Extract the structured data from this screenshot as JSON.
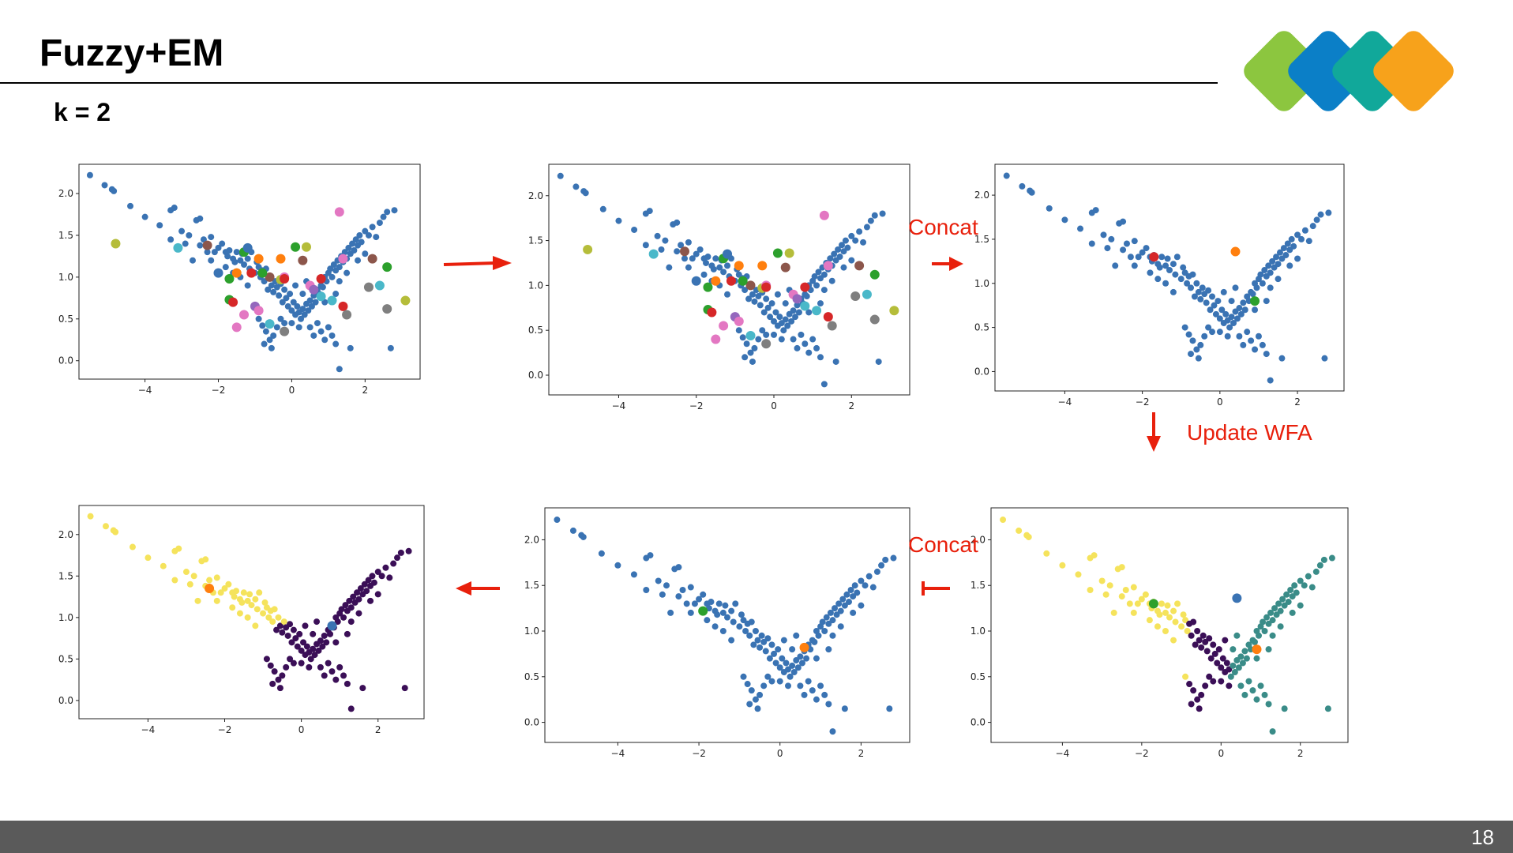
{
  "slide": {
    "title": "Fuzzy+EM",
    "subtitle": "k = 2",
    "page_number": "18",
    "logo_colors": [
      "#8cc63f",
      "#0b7fc7",
      "#11a89a",
      "#f7a21b"
    ]
  },
  "annotations": {
    "concat_top": "Concat",
    "concat_bottom": "Concat",
    "update": "Update WFA"
  },
  "colors": {
    "base_points": "#3a73b3",
    "arrow": "#e8200c",
    "cluster_dark": "#3b0f57",
    "cluster_yellow": "#f5e35c",
    "cluster_teal": "#3a8c88"
  },
  "chart_data": [
    {
      "id": "chart-1",
      "type": "scatter",
      "xlim": [
        -5.8,
        3.5
      ],
      "ylim": [
        -0.22,
        2.35
      ],
      "xticks": [
        "−4",
        "−2",
        "0",
        "2"
      ],
      "yticks": [
        "0.0",
        "0.5",
        "1.0",
        "1.5",
        "2.0"
      ],
      "series": [
        {
          "kind": "base",
          "color": "#3a73b3",
          "size": 4
        },
        {
          "kind": "markers",
          "size": 6,
          "points": [
            [
              -4.8,
              1.4,
              "#b5bd3a"
            ],
            [
              -3.1,
              1.35,
              "#4ab8c9"
            ],
            [
              -2.3,
              1.38,
              "#8c564b"
            ],
            [
              -1.3,
              1.3,
              "#2ca02c"
            ],
            [
              -0.9,
              1.22,
              "#ff7f0e"
            ],
            [
              -0.3,
              1.22,
              "#ff7f0e"
            ],
            [
              0.1,
              1.36,
              "#2ca02c"
            ],
            [
              0.4,
              1.36,
              "#b5bd3a"
            ],
            [
              0.3,
              1.2,
              "#8c564b"
            ],
            [
              -1.1,
              1.05,
              "#d62728"
            ],
            [
              -0.6,
              1.0,
              "#8c564b"
            ],
            [
              -0.3,
              0.97,
              "#b5bd3a"
            ],
            [
              -0.2,
              1.0,
              "#e377c2"
            ],
            [
              -1.7,
              0.98,
              "#2ca02c"
            ],
            [
              -0.2,
              0.98,
              "#d62728"
            ],
            [
              0.8,
              0.98,
              "#d62728"
            ],
            [
              0.5,
              0.9,
              "#e377c2"
            ],
            [
              0.6,
              0.85,
              "#9467bd"
            ],
            [
              -1.7,
              0.73,
              "#2ca02c"
            ],
            [
              -1.6,
              0.7,
              "#d62728"
            ],
            [
              -1.0,
              0.65,
              "#9467bd"
            ],
            [
              -0.9,
              0.6,
              "#e377c2"
            ],
            [
              -1.3,
              0.55,
              "#e377c2"
            ],
            [
              -1.5,
              0.4,
              "#e377c2"
            ],
            [
              -0.6,
              0.44,
              "#4ab8c9"
            ],
            [
              -0.2,
              0.35,
              "#7f7f7f"
            ],
            [
              0.8,
              0.77,
              "#4ab8c9"
            ],
            [
              1.1,
              0.72,
              "#4ab8c9"
            ],
            [
              1.4,
              0.65,
              "#d62728"
            ],
            [
              1.5,
              0.55,
              "#7f7f7f"
            ],
            [
              1.3,
              1.78,
              "#e377c2"
            ],
            [
              1.4,
              1.22,
              "#e377c2"
            ],
            [
              2.2,
              1.22,
              "#8c564b"
            ],
            [
              2.6,
              1.12,
              "#2ca02c"
            ],
            [
              2.4,
              0.9,
              "#4ab8c9"
            ],
            [
              2.1,
              0.88,
              "#7f7f7f"
            ],
            [
              2.6,
              0.62,
              "#7f7f7f"
            ],
            [
              3.1,
              0.72,
              "#b5bd3a"
            ],
            [
              -0.8,
              1.05,
              "#2ca02c"
            ],
            [
              -1.5,
              1.05,
              "#ff7f0e"
            ],
            [
              -2.0,
              1.05,
              "#3a73b3"
            ],
            [
              -1.2,
              1.35,
              "#3a73b3"
            ]
          ]
        }
      ]
    },
    {
      "id": "chart-2",
      "type": "scatter",
      "xlim": [
        -5.8,
        3.5
      ],
      "ylim": [
        -0.22,
        2.35
      ],
      "xticks": [
        "−4",
        "−2",
        "0",
        "2"
      ],
      "yticks": [
        "0.0",
        "0.5",
        "1.0",
        "1.5",
        "2.0"
      ],
      "series": [
        {
          "kind": "base",
          "color": "#3a73b3",
          "size": 4
        },
        {
          "kind": "markers",
          "size": 6,
          "points": [
            [
              -4.8,
              1.4,
              "#b5bd3a"
            ],
            [
              -3.1,
              1.35,
              "#4ab8c9"
            ],
            [
              -2.3,
              1.38,
              "#8c564b"
            ],
            [
              -1.3,
              1.3,
              "#2ca02c"
            ],
            [
              -0.9,
              1.22,
              "#ff7f0e"
            ],
            [
              -0.3,
              1.22,
              "#ff7f0e"
            ],
            [
              0.1,
              1.36,
              "#2ca02c"
            ],
            [
              0.4,
              1.36,
              "#b5bd3a"
            ],
            [
              0.3,
              1.2,
              "#8c564b"
            ],
            [
              -1.1,
              1.05,
              "#d62728"
            ],
            [
              -0.6,
              1.0,
              "#8c564b"
            ],
            [
              -0.3,
              0.97,
              "#b5bd3a"
            ],
            [
              -0.2,
              1.0,
              "#e377c2"
            ],
            [
              -1.7,
              0.98,
              "#2ca02c"
            ],
            [
              -0.2,
              0.98,
              "#d62728"
            ],
            [
              0.8,
              0.98,
              "#d62728"
            ],
            [
              0.5,
              0.9,
              "#e377c2"
            ],
            [
              0.6,
              0.85,
              "#9467bd"
            ],
            [
              -1.7,
              0.73,
              "#2ca02c"
            ],
            [
              -1.6,
              0.7,
              "#d62728"
            ],
            [
              -1.0,
              0.65,
              "#9467bd"
            ],
            [
              -0.9,
              0.6,
              "#e377c2"
            ],
            [
              -1.3,
              0.55,
              "#e377c2"
            ],
            [
              -1.5,
              0.4,
              "#e377c2"
            ],
            [
              -0.6,
              0.44,
              "#4ab8c9"
            ],
            [
              -0.2,
              0.35,
              "#7f7f7f"
            ],
            [
              0.8,
              0.77,
              "#4ab8c9"
            ],
            [
              1.1,
              0.72,
              "#4ab8c9"
            ],
            [
              1.4,
              0.65,
              "#d62728"
            ],
            [
              1.5,
              0.55,
              "#7f7f7f"
            ],
            [
              1.3,
              1.78,
              "#e377c2"
            ],
            [
              1.4,
              1.22,
              "#e377c2"
            ],
            [
              2.2,
              1.22,
              "#8c564b"
            ],
            [
              2.6,
              1.12,
              "#2ca02c"
            ],
            [
              2.4,
              0.9,
              "#4ab8c9"
            ],
            [
              2.1,
              0.88,
              "#7f7f7f"
            ],
            [
              2.6,
              0.62,
              "#7f7f7f"
            ],
            [
              3.1,
              0.72,
              "#b5bd3a"
            ],
            [
              -0.8,
              1.05,
              "#2ca02c"
            ],
            [
              -1.5,
              1.05,
              "#ff7f0e"
            ],
            [
              -2.0,
              1.05,
              "#3a73b3"
            ],
            [
              -1.2,
              1.35,
              "#3a73b3"
            ]
          ]
        }
      ]
    },
    {
      "id": "chart-3",
      "type": "scatter",
      "xlim": [
        -5.8,
        3.2
      ],
      "ylim": [
        -0.22,
        2.35
      ],
      "xticks": [
        "−4",
        "−2",
        "0",
        "2"
      ],
      "yticks": [
        "0.0",
        "0.5",
        "1.0",
        "1.5",
        "2.0"
      ],
      "series": [
        {
          "kind": "base",
          "color": "#3a73b3",
          "size": 4
        },
        {
          "kind": "markers",
          "size": 6,
          "points": [
            [
              -1.7,
              1.3,
              "#d62728"
            ],
            [
              0.4,
              1.36,
              "#ff7f0e"
            ],
            [
              0.9,
              0.8,
              "#2ca02c"
            ]
          ]
        }
      ]
    },
    {
      "id": "chart-4",
      "type": "scatter",
      "xlim": [
        -5.8,
        3.2
      ],
      "ylim": [
        -0.22,
        2.35
      ],
      "xticks": [
        "−4",
        "−2",
        "0",
        "2"
      ],
      "yticks": [
        "0.0",
        "0.5",
        "1.0",
        "1.5",
        "2.0"
      ],
      "series": [
        {
          "kind": "clusters",
          "colors": [
            "#f5e35c",
            "#3b0f57",
            "#3a8c88"
          ],
          "size": 4
        },
        {
          "kind": "markers",
          "size": 6,
          "points": [
            [
              -1.7,
              1.3,
              "#2ca02c"
            ],
            [
              0.4,
              1.36,
              "#3a73b3"
            ],
            [
              0.9,
              0.8,
              "#ff7f0e"
            ]
          ]
        }
      ]
    },
    {
      "id": "chart-5",
      "type": "scatter",
      "xlim": [
        -5.8,
        3.2
      ],
      "ylim": [
        -0.22,
        2.35
      ],
      "xticks": [
        "−4",
        "−2",
        "0",
        "2"
      ],
      "yticks": [
        "0.0",
        "0.5",
        "1.0",
        "1.5",
        "2.0"
      ],
      "series": [
        {
          "kind": "base",
          "color": "#3a73b3",
          "size": 4
        },
        {
          "kind": "markers",
          "size": 6,
          "points": [
            [
              -1.9,
              1.22,
              "#2ca02c"
            ],
            [
              0.6,
              0.82,
              "#ff7f0e"
            ]
          ]
        }
      ]
    },
    {
      "id": "chart-6",
      "type": "scatter",
      "xlim": [
        -5.8,
        3.2
      ],
      "ylim": [
        -0.22,
        2.35
      ],
      "xticks": [
        "−4",
        "−2",
        "0",
        "2"
      ],
      "yticks": [
        "0.0",
        "0.5",
        "1.0",
        "1.5",
        "2.0"
      ],
      "series": [
        {
          "kind": "two_clusters",
          "colors": [
            "#f5e35c",
            "#3b0f57"
          ],
          "size": 4
        },
        {
          "kind": "markers",
          "size": 6,
          "points": [
            [
              -2.4,
              1.35,
              "#ff7f0e"
            ],
            [
              0.8,
              0.9,
              "#3a73b3"
            ]
          ]
        }
      ]
    }
  ],
  "base_points": [
    [
      -5.5,
      2.22
    ],
    [
      -5.1,
      2.1
    ],
    [
      -4.9,
      2.05
    ],
    [
      -4.85,
      2.03
    ],
    [
      -4.4,
      1.85
    ],
    [
      -4.0,
      1.72
    ],
    [
      -3.6,
      1.62
    ],
    [
      -3.3,
      1.8
    ],
    [
      -3.2,
      1.83
    ],
    [
      -3.0,
      1.55
    ],
    [
      -2.8,
      1.5
    ],
    [
      -2.6,
      1.68
    ],
    [
      -2.5,
      1.7
    ],
    [
      -2.4,
      1.45
    ],
    [
      -2.2,
      1.48
    ],
    [
      -2.1,
      1.3
    ],
    [
      -2.0,
      1.35
    ],
    [
      -1.9,
      1.4
    ],
    [
      -1.8,
      1.3
    ],
    [
      -1.75,
      1.25
    ],
    [
      -1.7,
      1.32
    ],
    [
      -1.6,
      1.22
    ],
    [
      -1.55,
      1.18
    ],
    [
      -1.5,
      1.3
    ],
    [
      -1.4,
      1.2
    ],
    [
      -1.35,
      1.28
    ],
    [
      -1.3,
      1.15
    ],
    [
      -1.2,
      1.22
    ],
    [
      -1.15,
      1.1
    ],
    [
      -1.1,
      1.3
    ],
    [
      -1.0,
      1.05
    ],
    [
      -0.95,
      1.18
    ],
    [
      -0.9,
      1.12
    ],
    [
      -0.85,
      1.0
    ],
    [
      -0.8,
      1.08
    ],
    [
      -0.75,
      0.95
    ],
    [
      -0.7,
      1.1
    ],
    [
      -0.65,
      0.85
    ],
    [
      -0.6,
      1.0
    ],
    [
      -0.55,
      0.9
    ],
    [
      -0.5,
      0.82
    ],
    [
      -0.45,
      0.95
    ],
    [
      -0.4,
      0.88
    ],
    [
      -0.35,
      0.78
    ],
    [
      -0.3,
      0.92
    ],
    [
      -0.25,
      0.7
    ],
    [
      -0.2,
      0.85
    ],
    [
      -0.15,
      0.75
    ],
    [
      -0.1,
      0.65
    ],
    [
      -0.05,
      0.8
    ],
    [
      0.0,
      0.6
    ],
    [
      0.05,
      0.7
    ],
    [
      0.1,
      0.55
    ],
    [
      0.15,
      0.65
    ],
    [
      0.2,
      0.58
    ],
    [
      0.25,
      0.5
    ],
    [
      0.3,
      0.62
    ],
    [
      0.35,
      0.55
    ],
    [
      0.4,
      0.68
    ],
    [
      0.45,
      0.6
    ],
    [
      0.5,
      0.72
    ],
    [
      0.55,
      0.65
    ],
    [
      0.6,
      0.78
    ],
    [
      0.65,
      0.7
    ],
    [
      0.7,
      0.85
    ],
    [
      0.75,
      0.8
    ],
    [
      0.8,
      0.9
    ],
    [
      0.85,
      0.88
    ],
    [
      0.9,
      1.0
    ],
    [
      0.95,
      0.95
    ],
    [
      1.0,
      1.05
    ],
    [
      1.05,
      1.1
    ],
    [
      1.1,
      1.0
    ],
    [
      1.15,
      1.15
    ],
    [
      1.2,
      1.08
    ],
    [
      1.25,
      1.2
    ],
    [
      1.3,
      1.12
    ],
    [
      1.35,
      1.25
    ],
    [
      1.4,
      1.18
    ],
    [
      1.45,
      1.3
    ],
    [
      1.5,
      1.22
    ],
    [
      1.55,
      1.35
    ],
    [
      1.6,
      1.28
    ],
    [
      1.65,
      1.4
    ],
    [
      1.7,
      1.32
    ],
    [
      1.75,
      1.45
    ],
    [
      1.8,
      1.38
    ],
    [
      1.85,
      1.5
    ],
    [
      1.9,
      1.42
    ],
    [
      2.0,
      1.55
    ],
    [
      2.1,
      1.5
    ],
    [
      2.2,
      1.6
    ],
    [
      2.3,
      1.48
    ],
    [
      2.4,
      1.65
    ],
    [
      2.5,
      1.72
    ],
    [
      2.6,
      1.78
    ],
    [
      2.8,
      1.8
    ],
    [
      -0.9,
      0.5
    ],
    [
      -0.8,
      0.42
    ],
    [
      -0.7,
      0.35
    ],
    [
      -0.75,
      0.2
    ],
    [
      -0.6,
      0.25
    ],
    [
      -0.5,
      0.3
    ],
    [
      -0.55,
      0.15
    ],
    [
      -0.4,
      0.4
    ],
    [
      -0.3,
      0.5
    ],
    [
      0.5,
      0.4
    ],
    [
      0.6,
      0.3
    ],
    [
      0.7,
      0.45
    ],
    [
      0.8,
      0.35
    ],
    [
      0.9,
      0.25
    ],
    [
      1.0,
      0.4
    ],
    [
      1.1,
      0.3
    ],
    [
      1.2,
      0.2
    ],
    [
      1.6,
      0.15
    ],
    [
      2.7,
      0.15
    ],
    [
      1.3,
      -0.1
    ],
    [
      -0.2,
      0.45
    ],
    [
      0.2,
      0.4
    ],
    [
      0.0,
      0.45
    ],
    [
      -1.2,
      0.9
    ],
    [
      -1.4,
      1.0
    ],
    [
      -1.6,
      1.05
    ],
    [
      -1.8,
      1.12
    ],
    [
      -2.2,
      1.2
    ],
    [
      -2.5,
      1.38
    ],
    [
      -2.3,
      1.3
    ],
    [
      -2.9,
      1.4
    ],
    [
      -3.3,
      1.45
    ],
    [
      -2.7,
      1.2
    ],
    [
      0.3,
      0.8
    ],
    [
      0.1,
      0.9
    ],
    [
      0.4,
      0.95
    ],
    [
      1.3,
      0.95
    ],
    [
      1.5,
      1.05
    ],
    [
      1.8,
      1.2
    ],
    [
      2.0,
      1.28
    ],
    [
      1.2,
      0.8
    ],
    [
      0.9,
      0.7
    ]
  ]
}
